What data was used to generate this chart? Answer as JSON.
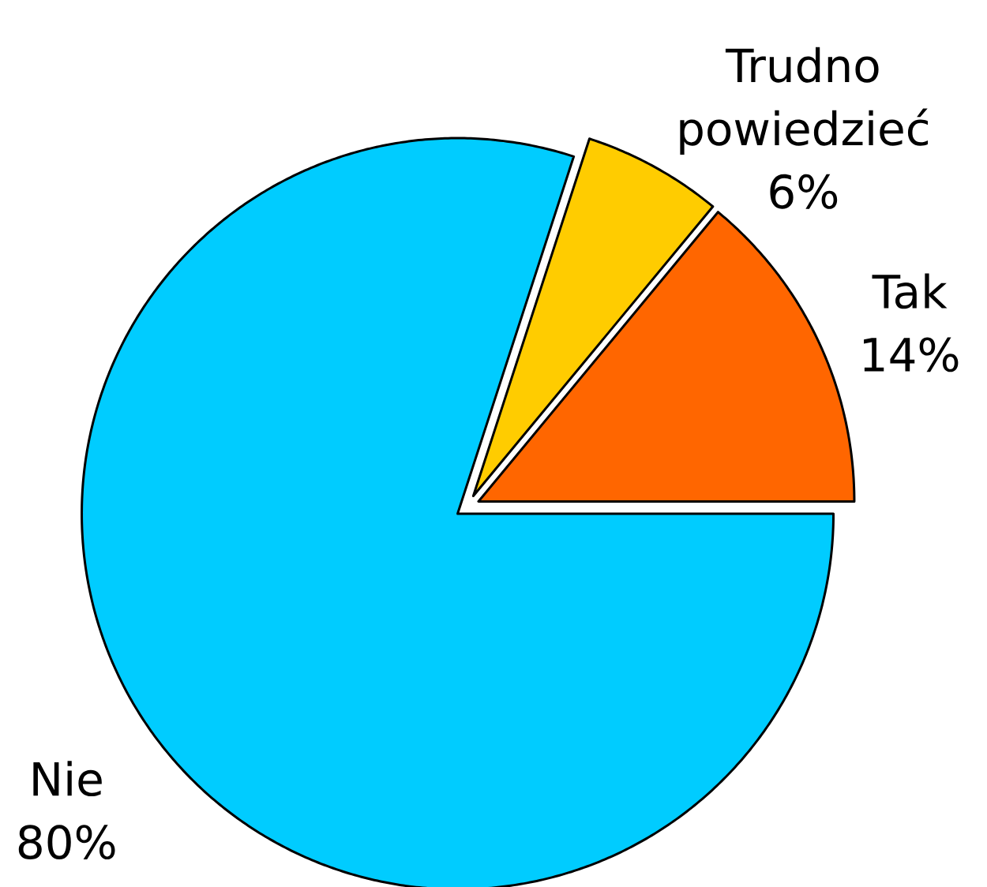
{
  "chart_data": {
    "type": "pie",
    "categories": [
      "Tak",
      "Trudno powiedzieć",
      "Nie"
    ],
    "values": [
      14,
      6,
      80
    ],
    "colors": [
      "#ff6600",
      "#ffcc00",
      "#00ccff"
    ],
    "value_labels": [
      "14%",
      "6%",
      "80%"
    ]
  }
}
